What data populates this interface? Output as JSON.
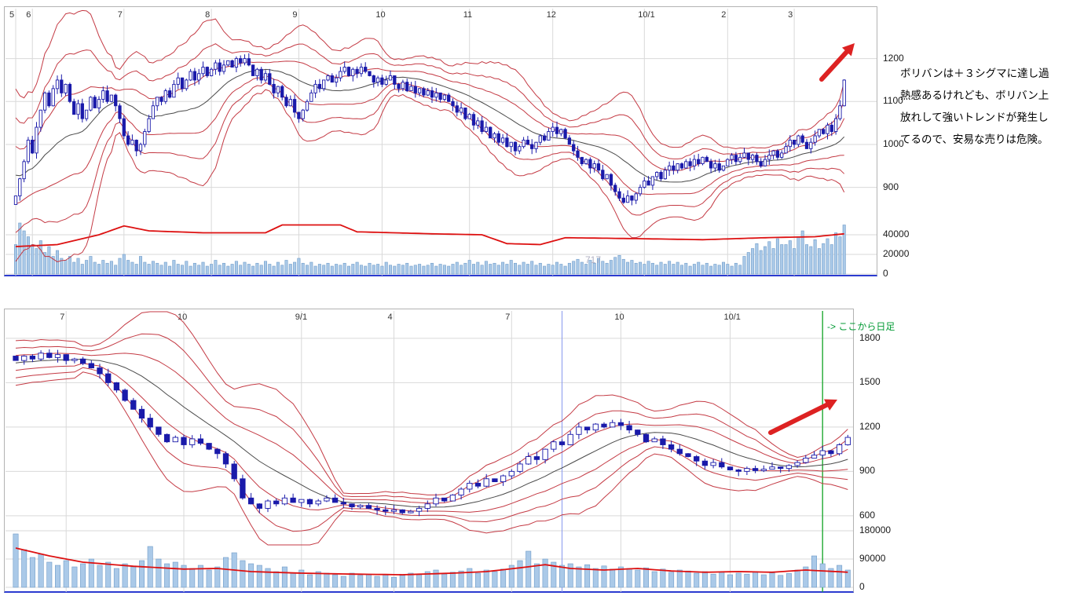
{
  "colors": {
    "background": "#ffffff",
    "candle_up_fill": "#ffffff",
    "candle_down_fill": "#1a1aaa",
    "candle_border": "#1a1aaa",
    "volume_bar_fill": "#aac9e8",
    "volume_bar_border": "#6f9cc9",
    "band_line": "#c43a44",
    "sma_line": "#4a4a4a",
    "margin_line": "#dd1111",
    "grid": "#d9d9d9",
    "axis_label": "#1a1a1a",
    "arrow": "#dd2222",
    "green_line": "#22aa33",
    "marker_line": "#8899ee",
    "watermark": "#b0b0c2"
  },
  "annotation": {
    "lines": [
      "ボリバンは＋３シグマに達し過",
      "熱感あるけれども、ボリバン上",
      "放れして強いトレンドが発生し",
      "てるので、安易な売りは危険。"
    ]
  },
  "chart_data": [
    {
      "type": "candlestick",
      "timeframe": "daily",
      "title": "",
      "x_ticks": [
        {
          "label": "5",
          "index": 0
        },
        {
          "label": "6",
          "index": 4
        },
        {
          "label": "7",
          "index": 26
        },
        {
          "label": "8",
          "index": 47
        },
        {
          "label": "9",
          "index": 68
        },
        {
          "label": "10",
          "index": 88
        },
        {
          "label": "11",
          "index": 109
        },
        {
          "label": "12",
          "index": 129
        },
        {
          "label": "10/1",
          "index": 151
        },
        {
          "label": "2",
          "index": 171
        },
        {
          "label": "3",
          "index": 187
        }
      ],
      "y_ticks_price": [
        1200,
        1100,
        1000,
        900
      ],
      "y_ticks_volume": [
        40000,
        20000,
        0
      ],
      "price_range_displayed": [
        840,
        1320
      ],
      "volume_scale_max": 56000,
      "bollinger": {
        "window": 20,
        "sigmas": [
          1,
          2,
          3
        ]
      },
      "band_seed": [
        1050,
        980,
        920,
        880,
        860
      ],
      "watermark": "717",
      "close": [
        880,
        920,
        960,
        1010,
        980,
        1040,
        1080,
        1120,
        1090,
        1130,
        1150,
        1120,
        1140,
        1100,
        1070,
        1095,
        1060,
        1080,
        1110,
        1085,
        1105,
        1125,
        1100,
        1115,
        1090,
        1060,
        1020,
        1000,
        1010,
        985,
        1000,
        1030,
        1060,
        1090,
        1110,
        1100,
        1125,
        1110,
        1140,
        1155,
        1130,
        1150,
        1170,
        1150,
        1165,
        1180,
        1160,
        1175,
        1190,
        1170,
        1185,
        1195,
        1180,
        1200,
        1190,
        1200,
        1185,
        1160,
        1175,
        1150,
        1165,
        1140,
        1120,
        1135,
        1110,
        1090,
        1105,
        1075,
        1060,
        1080,
        1100,
        1120,
        1140,
        1130,
        1150,
        1160,
        1145,
        1155,
        1170,
        1180,
        1160,
        1175,
        1165,
        1180,
        1170,
        1160,
        1145,
        1155,
        1140,
        1150,
        1160,
        1140,
        1130,
        1145,
        1125,
        1135,
        1120,
        1130,
        1115,
        1125,
        1110,
        1120,
        1105,
        1115,
        1100,
        1090,
        1075,
        1085,
        1060,
        1070,
        1045,
        1055,
        1030,
        1040,
        1015,
        1025,
        1005,
        1015,
        995,
        1005,
        985,
        995,
        1010,
        1000,
        990,
        1005,
        1020,
        1010,
        1030,
        1040,
        1025,
        1035,
        1015,
        1000,
        985,
        970,
        955,
        965,
        945,
        955,
        940,
        920,
        930,
        905,
        890,
        875,
        865,
        880,
        870,
        885,
        900,
        915,
        905,
        925,
        935,
        920,
        940,
        950,
        940,
        955,
        945,
        960,
        950,
        965,
        955,
        970,
        960,
        945,
        955,
        940,
        950,
        965,
        975,
        960,
        970,
        980,
        965,
        975,
        960,
        950,
        965,
        975,
        985,
        970,
        980,
        995,
        1010,
        1000,
        1020,
        1005,
        990,
        1005,
        1020,
        1035,
        1025,
        1045,
        1030,
        1060,
        1090,
        1150
      ],
      "volume": [
        30000,
        52000,
        44000,
        38000,
        30000,
        26000,
        34000,
        22000,
        28000,
        18000,
        24000,
        16000,
        14000,
        18000,
        12000,
        16000,
        10000,
        14000,
        18000,
        12000,
        10000,
        14000,
        11000,
        13000,
        9000,
        16000,
        20000,
        14000,
        12000,
        10000,
        18000,
        12000,
        10000,
        13000,
        11000,
        9000,
        12000,
        8000,
        14000,
        10000,
        9000,
        13000,
        8000,
        11000,
        9000,
        12000,
        8000,
        10000,
        14000,
        9000,
        11000,
        8000,
        10000,
        13000,
        9000,
        12000,
        10000,
        8000,
        11000,
        9000,
        13000,
        10000,
        8000,
        12000,
        9000,
        14000,
        10000,
        12000,
        16000,
        11000,
        9000,
        12000,
        8000,
        10000,
        9000,
        11000,
        8000,
        10000,
        9000,
        11000,
        8000,
        10000,
        12000,
        9000,
        8000,
        11000,
        9000,
        10000,
        8000,
        12000,
        9000,
        8000,
        10000,
        9000,
        11000,
        8000,
        9000,
        10000,
        8000,
        9000,
        11000,
        8000,
        10000,
        9000,
        8000,
        10000,
        12000,
        9000,
        11000,
        14000,
        10000,
        12000,
        9000,
        13000,
        10000,
        11000,
        9000,
        12000,
        10000,
        14000,
        11000,
        9000,
        12000,
        10000,
        13000,
        9000,
        11000,
        8000,
        10000,
        9000,
        12000,
        10000,
        8000,
        11000,
        13000,
        15000,
        12000,
        10000,
        14000,
        11000,
        16000,
        13000,
        11000,
        14000,
        17000,
        19000,
        15000,
        12000,
        14000,
        11000,
        12000,
        10000,
        13000,
        11000,
        9000,
        12000,
        10000,
        13000,
        10000,
        12000,
        9000,
        11000,
        8000,
        10000,
        12000,
        9000,
        11000,
        8000,
        10000,
        9000,
        12000,
        10000,
        8000,
        11000,
        9000,
        18000,
        22000,
        26000,
        31000,
        24000,
        28000,
        33000,
        26000,
        36000,
        30000,
        30000,
        34000,
        26000,
        38000,
        44000,
        30000,
        28000,
        35000,
        26000,
        31000,
        36000,
        30000,
        42000,
        38000,
        50000
      ],
      "margin_line": [
        [
          0,
          28000
        ],
        [
          10,
          30000
        ],
        [
          20,
          40000
        ],
        [
          26,
          49000
        ],
        [
          32,
          44000
        ],
        [
          45,
          42000
        ],
        [
          60,
          42000
        ],
        [
          64,
          50000
        ],
        [
          78,
          50000
        ],
        [
          82,
          43000
        ],
        [
          100,
          41000
        ],
        [
          112,
          40000
        ],
        [
          118,
          31000
        ],
        [
          126,
          30000
        ],
        [
          132,
          37000
        ],
        [
          150,
          36000
        ],
        [
          165,
          35000
        ],
        [
          180,
          37000
        ],
        [
          192,
          38000
        ],
        [
          199,
          41000
        ]
      ]
    },
    {
      "type": "candlestick",
      "timeframe": "weekly",
      "title": "",
      "x_ticks": [
        {
          "label": "7",
          "index": 6
        },
        {
          "label": "10",
          "index": 20
        },
        {
          "label": "9/1",
          "index": 34
        },
        {
          "label": "4",
          "index": 45
        },
        {
          "label": "7",
          "index": 59
        },
        {
          "label": "10",
          "index": 72
        },
        {
          "label": "10/1",
          "index": 85
        }
      ],
      "y_ticks_price": [
        1800,
        1500,
        1200,
        900,
        600
      ],
      "y_ticks_volume": [
        180000,
        90000,
        0
      ],
      "price_range_displayed": [
        450,
        1990
      ],
      "volume_scale_max": 210000,
      "bollinger": {
        "window": 13,
        "sigmas": [
          1,
          2,
          3
        ]
      },
      "band_seed": [
        1550,
        1700,
        1600,
        1680,
        1620
      ],
      "green_line": {
        "index": 96,
        "label": "-> ここから日足"
      },
      "marker_line_index": 65,
      "close": [
        1650,
        1680,
        1660,
        1700,
        1670,
        1690,
        1650,
        1660,
        1630,
        1600,
        1560,
        1500,
        1450,
        1380,
        1320,
        1260,
        1200,
        1150,
        1100,
        1130,
        1080,
        1120,
        1090,
        1050,
        1020,
        950,
        850,
        720,
        680,
        650,
        700,
        680,
        720,
        690,
        710,
        680,
        700,
        720,
        690,
        680,
        660,
        670,
        650,
        640,
        630,
        640,
        620,
        630,
        650,
        680,
        720,
        700,
        740,
        780,
        820,
        800,
        850,
        830,
        870,
        900,
        950,
        1000,
        980,
        1050,
        1100,
        1080,
        1150,
        1200,
        1180,
        1220,
        1200,
        1230,
        1210,
        1180,
        1150,
        1100,
        1120,
        1080,
        1050,
        1020,
        1000,
        970,
        940,
        960,
        930,
        910,
        900,
        920,
        905,
        915,
        930,
        920,
        940,
        960,
        990,
        1010,
        1040,
        1020,
        1080,
        1130
      ],
      "volume": [
        170000,
        120000,
        95000,
        105000,
        80000,
        70000,
        85000,
        65000,
        75000,
        90000,
        70000,
        80000,
        60000,
        75000,
        65000,
        85000,
        130000,
        90000,
        75000,
        80000,
        70000,
        60000,
        70000,
        55000,
        65000,
        95000,
        110000,
        85000,
        75000,
        70000,
        60000,
        50000,
        65000,
        45000,
        55000,
        40000,
        50000,
        45000,
        40000,
        35000,
        45000,
        38000,
        42000,
        35000,
        40000,
        32000,
        38000,
        45000,
        40000,
        50000,
        55000,
        42000,
        48000,
        52000,
        60000,
        45000,
        55000,
        50000,
        58000,
        70000,
        85000,
        115000,
        75000,
        90000,
        80000,
        70000,
        75000,
        65000,
        72000,
        60000,
        68000,
        58000,
        65000,
        60000,
        55000,
        62000,
        50000,
        58000,
        48000,
        55000,
        52000,
        45000,
        50000,
        42000,
        48000,
        40000,
        45000,
        42000,
        50000,
        40000,
        46000,
        38000,
        44000,
        55000,
        65000,
        100000,
        75000,
        60000,
        70000,
        55000
      ],
      "margin_line": [
        [
          0,
          125000
        ],
        [
          4,
          100000
        ],
        [
          8,
          80000
        ],
        [
          14,
          67000
        ],
        [
          20,
          58000
        ],
        [
          24,
          60000
        ],
        [
          28,
          50000
        ],
        [
          34,
          45000
        ],
        [
          40,
          42000
        ],
        [
          46,
          40000
        ],
        [
          52,
          45000
        ],
        [
          56,
          50000
        ],
        [
          60,
          62000
        ],
        [
          63,
          72000
        ],
        [
          66,
          60000
        ],
        [
          70,
          55000
        ],
        [
          74,
          60000
        ],
        [
          78,
          52000
        ],
        [
          82,
          48000
        ],
        [
          86,
          50000
        ],
        [
          90,
          48000
        ],
        [
          94,
          55000
        ],
        [
          99,
          48000
        ]
      ]
    }
  ]
}
